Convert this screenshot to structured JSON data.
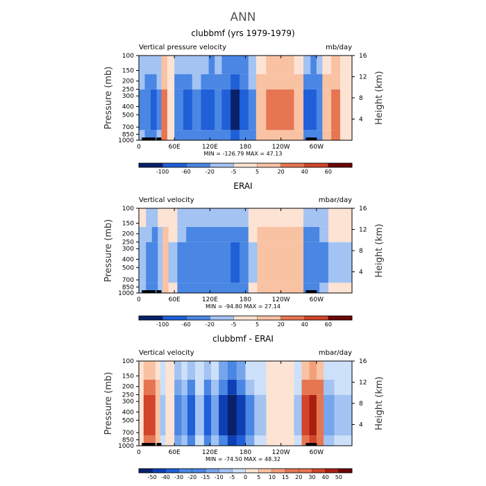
{
  "figure_title": "ANN",
  "colors": {
    "frame": "#000000",
    "land": "#000000",
    "cbar_div": [
      "#08216b",
      "#0d3fb5",
      "#1f5fd8",
      "#4a86e3",
      "#76a5ec",
      "#a3c3f3",
      "#cde0f9",
      "#fde3d3",
      "#f9c2a3",
      "#f39f7a",
      "#e67552",
      "#d2452a",
      "#a81e10",
      "#6b0604"
    ]
  },
  "chart_data": [
    {
      "type": "heatmap",
      "name": "panel-model",
      "title": "clubbmf (yrs 1979-1979)",
      "left_label": "Vertical pressure velocity",
      "right_label": "mb/day",
      "ylabel": "Pressure (mb)",
      "y2label": "Height (km)",
      "x_ticks": [
        "0",
        "60E",
        "120E",
        "180",
        "120W",
        "60W"
      ],
      "y_ticks": [
        "100",
        "150",
        "200",
        "250",
        "300",
        "400",
        "500",
        "700",
        "850",
        "1000"
      ],
      "y2_ticks": [
        "16",
        "12",
        "8",
        "4"
      ],
      "min": "-126.79",
      "max": "47.13",
      "minmax_text": "MIN = -126.79  MAX =  47.13",
      "cbar_labels": [
        "-100",
        "-60",
        "-20",
        "-5",
        "5",
        "20",
        "40",
        "60"
      ],
      "bands": [
        {
          "lon": 0,
          "value": -20
        },
        {
          "lon": 10,
          "value": -40
        },
        {
          "lon": 20,
          "value": -60
        },
        {
          "lon": 30,
          "value": -20
        },
        {
          "lon": 38,
          "value": 30
        },
        {
          "lon": 48,
          "value": 5
        },
        {
          "lon": 60,
          "value": -40
        },
        {
          "lon": 75,
          "value": -60
        },
        {
          "lon": 90,
          "value": -30
        },
        {
          "lon": 105,
          "value": -60
        },
        {
          "lon": 118,
          "value": -80
        },
        {
          "lon": 128,
          "value": -50
        },
        {
          "lon": 140,
          "value": -80
        },
        {
          "lon": 155,
          "value": -120
        },
        {
          "lon": 170,
          "value": -80
        },
        {
          "lon": 185,
          "value": -30
        },
        {
          "lon": 198,
          "value": 20
        },
        {
          "lon": 215,
          "value": 25
        },
        {
          "lon": 240,
          "value": 22
        },
        {
          "lon": 262,
          "value": 20
        },
        {
          "lon": 278,
          "value": -60
        },
        {
          "lon": 290,
          "value": -80
        },
        {
          "lon": 300,
          "value": -40
        },
        {
          "lon": 310,
          "value": 15
        },
        {
          "lon": 325,
          "value": 30
        },
        {
          "lon": 340,
          "value": 5
        },
        {
          "lon": 360,
          "value": 5
        }
      ]
    },
    {
      "type": "heatmap",
      "name": "panel-obs",
      "title": "ERAI",
      "left_label": "Vertical velocity",
      "right_label": "mbar/day",
      "ylabel": "Pressure (mb)",
      "y2label": "Height (km)",
      "x_ticks": [
        "0",
        "60E",
        "120E",
        "180",
        "120W",
        "60W"
      ],
      "y_ticks": [
        "100",
        "150",
        "200",
        "250",
        "300",
        "400",
        "500",
        "700",
        "850",
        "1000"
      ],
      "y2_ticks": [
        "16",
        "12",
        "8",
        "4"
      ],
      "min": "-94.80",
      "max": "27.14",
      "minmax_text": "MIN = -94.80  MAX =  27.14",
      "cbar_labels": [
        "-100",
        "-60",
        "-20",
        "-5",
        "5",
        "20",
        "40",
        "60"
      ],
      "bands": [
        {
          "lon": 0,
          "value": -10
        },
        {
          "lon": 12,
          "value": -30
        },
        {
          "lon": 22,
          "value": -50
        },
        {
          "lon": 32,
          "value": -15
        },
        {
          "lon": 40,
          "value": 20
        },
        {
          "lon": 50,
          "value": -5
        },
        {
          "lon": 65,
          "value": -30
        },
        {
          "lon": 80,
          "value": -40
        },
        {
          "lon": 95,
          "value": -40
        },
        {
          "lon": 110,
          "value": -45
        },
        {
          "lon": 125,
          "value": -40
        },
        {
          "lon": 140,
          "value": -50
        },
        {
          "lon": 155,
          "value": -60
        },
        {
          "lon": 170,
          "value": -35
        },
        {
          "lon": 185,
          "value": -5
        },
        {
          "lon": 200,
          "value": 10
        },
        {
          "lon": 220,
          "value": 20
        },
        {
          "lon": 245,
          "value": 18
        },
        {
          "lon": 262,
          "value": 10
        },
        {
          "lon": 278,
          "value": -40
        },
        {
          "lon": 292,
          "value": -50
        },
        {
          "lon": 305,
          "value": -25
        },
        {
          "lon": 320,
          "value": -5
        },
        {
          "lon": 340,
          "value": -5
        },
        {
          "lon": 360,
          "value": -5
        }
      ]
    },
    {
      "type": "heatmap",
      "name": "panel-diff",
      "title": "clubbmf - ERAI",
      "left_label": "Vertical velocity",
      "right_label": "mbar/day",
      "ylabel": "Pressure (mb)",
      "y2label": "Height (km)",
      "x_ticks": [
        "0",
        "60E",
        "120E",
        "180",
        "120W",
        "60W"
      ],
      "y_ticks": [
        "100",
        "150",
        "200",
        "250",
        "300",
        "400",
        "500",
        "700",
        "850",
        "1000"
      ],
      "y2_ticks": [
        "16",
        "12",
        "8",
        "4"
      ],
      "min": "-74.50",
      "max": "48.32",
      "minmax_text": "MIN = -74.50  MAX =  48.32",
      "cbar_labels": [
        "-50",
        "-40",
        "-30",
        "-20",
        "-15",
        "-10",
        "-5",
        "0",
        "5",
        "10",
        "15",
        "20",
        "30",
        "40",
        "50"
      ],
      "bands": [
        {
          "lon": 0,
          "value": 5
        },
        {
          "lon": 8,
          "value": 35
        },
        {
          "lon": 18,
          "value": 40
        },
        {
          "lon": 28,
          "value": 10
        },
        {
          "lon": 36,
          "value": -5
        },
        {
          "lon": 45,
          "value": 5
        },
        {
          "lon": 60,
          "value": -20
        },
        {
          "lon": 72,
          "value": -10
        },
        {
          "lon": 82,
          "value": -30
        },
        {
          "lon": 95,
          "value": -5
        },
        {
          "lon": 110,
          "value": -35
        },
        {
          "lon": 122,
          "value": -10
        },
        {
          "lon": 135,
          "value": -40
        },
        {
          "lon": 150,
          "value": -70
        },
        {
          "lon": 165,
          "value": -45
        },
        {
          "lon": 180,
          "value": -15
        },
        {
          "lon": 195,
          "value": -5
        },
        {
          "lon": 215,
          "value": 5
        },
        {
          "lon": 240,
          "value": 5
        },
        {
          "lon": 262,
          "value": -5
        },
        {
          "lon": 275,
          "value": 40
        },
        {
          "lon": 288,
          "value": 45
        },
        {
          "lon": 300,
          "value": 30
        },
        {
          "lon": 312,
          "value": -10
        },
        {
          "lon": 330,
          "value": -5
        },
        {
          "lon": 360,
          "value": -5
        }
      ]
    }
  ]
}
